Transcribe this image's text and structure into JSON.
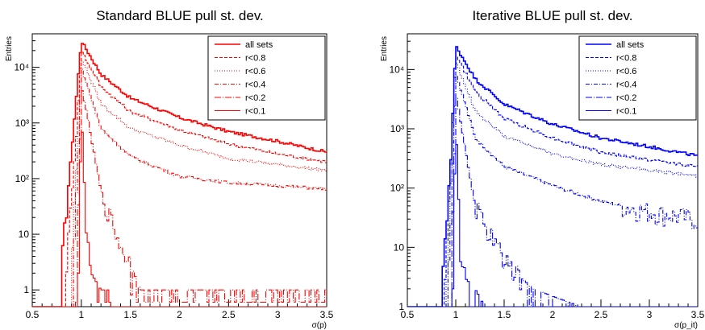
{
  "chart_data": [
    {
      "type": "line",
      "title": "Standard BLUE pull st. dev.",
      "xlabel": "σ(p)",
      "ylabel": "Entries",
      "xlim": [
        0.5,
        3.5
      ],
      "ylim": [
        0.5,
        40000
      ],
      "yscale": "log",
      "x_ticks": [
        "0.5",
        "1",
        "1.5",
        "2",
        "2.5",
        "3",
        "3.5"
      ],
      "y_ticks": [
        "1",
        "10",
        "10²",
        "10³",
        "10⁴"
      ],
      "color": "#ff0000",
      "legend_position": "top-right",
      "series": [
        {
          "name": "all sets",
          "style": "solid",
          "peak": 30000,
          "x": [
            0.8,
            0.9,
            1.0,
            1.2,
            1.5,
            2.0,
            2.5,
            3.0,
            3.5
          ],
          "y": [
            3,
            300,
            30000,
            7500,
            2800,
            1250,
            700,
            470,
            300
          ]
        },
        {
          "name": "r<0.8",
          "style": "dashed",
          "peak": 20000,
          "x": [
            0.85,
            0.95,
            1.0,
            1.2,
            1.5,
            2.0,
            2.5,
            3.0,
            3.5
          ],
          "y": [
            3,
            600,
            20000,
            4500,
            1600,
            750,
            420,
            280,
            200
          ]
        },
        {
          "name": "r<0.6",
          "style": "dotted",
          "peak": 15000,
          "x": [
            0.9,
            0.97,
            1.0,
            1.2,
            1.5,
            2.0,
            2.5,
            3.0,
            3.5
          ],
          "y": [
            3,
            700,
            15000,
            2200,
            800,
            400,
            230,
            180,
            140
          ]
        },
        {
          "name": "r<0.4",
          "style": "dash-dot",
          "peak": 10000,
          "x": [
            0.92,
            0.98,
            1.0,
            1.2,
            1.5,
            2.0,
            2.5,
            3.0,
            3.5
          ],
          "y": [
            3,
            800,
            10000,
            800,
            250,
            110,
            85,
            75,
            65
          ]
        },
        {
          "name": "r<0.2",
          "style": "long-dash-dot",
          "peak": 5000,
          "x": [
            0.95,
            0.99,
            1.0,
            1.2,
            1.4,
            1.5,
            1.6,
            2.0,
            2.5,
            3.0,
            3.5
          ],
          "y": [
            2,
            500,
            5000,
            60,
            6,
            3,
            1,
            1,
            1,
            1,
            1
          ]
        },
        {
          "name": "r<0.1",
          "style": "solid-thin",
          "peak": 2000,
          "x": [
            0.97,
            1.0,
            1.05,
            1.1,
            1.2,
            1.3
          ],
          "y": [
            2,
            2000,
            10,
            2,
            1,
            1
          ]
        }
      ],
      "legend": [
        "all sets",
        "r<0.8",
        "r<0.6",
        "r<0.4",
        "r<0.2",
        "r<0.1"
      ]
    },
    {
      "type": "line",
      "title": "Iterative BLUE pull st. dev.",
      "xlabel": "σ(p_it)",
      "ylabel": "Entries",
      "xlim": [
        0.5,
        3.5
      ],
      "ylim": [
        1,
        40000
      ],
      "yscale": "log",
      "x_ticks": [
        "0.5",
        "1",
        "1.5",
        "2",
        "2.5",
        "3",
        "3.5"
      ],
      "y_ticks": [
        "1",
        "10",
        "10²",
        "10³",
        "10⁴"
      ],
      "color": "#0000ff",
      "legend_position": "top-right",
      "series": [
        {
          "name": "all sets",
          "style": "solid",
          "peak": 25000,
          "x": [
            0.85,
            0.95,
            1.0,
            1.2,
            1.5,
            2.0,
            2.5,
            3.0,
            3.5
          ],
          "y": [
            2,
            300,
            25000,
            7000,
            2600,
            1200,
            700,
            500,
            350
          ]
        },
        {
          "name": "r<0.8",
          "style": "dashed",
          "peak": 18000,
          "x": [
            0.88,
            0.96,
            1.0,
            1.2,
            1.5,
            2.0,
            2.5,
            3.0,
            3.5
          ],
          "y": [
            2,
            500,
            18000,
            4300,
            1500,
            700,
            400,
            300,
            230
          ]
        },
        {
          "name": "r<0.6",
          "style": "dotted",
          "peak": 14000,
          "x": [
            0.9,
            0.97,
            1.0,
            1.2,
            1.5,
            2.0,
            2.5,
            3.0,
            3.5
          ],
          "y": [
            2,
            600,
            14000,
            2000,
            750,
            380,
            250,
            200,
            160
          ]
        },
        {
          "name": "r<0.4",
          "style": "dash-dot",
          "peak": 9000,
          "x": [
            0.92,
            0.98,
            1.0,
            1.2,
            1.5,
            2.0,
            2.5,
            3.0,
            3.5
          ],
          "y": [
            2,
            700,
            9000,
            700,
            230,
            110,
            60,
            40,
            30
          ]
        },
        {
          "name": "r<0.2",
          "style": "long-dash-dot",
          "peak": 4000,
          "x": [
            0.95,
            0.99,
            1.0,
            1.2,
            1.4,
            1.6,
            1.8,
            2.0,
            2.3
          ],
          "y": [
            2,
            400,
            4000,
            50,
            12,
            4,
            2,
            1.5,
            1
          ]
        },
        {
          "name": "r<0.1",
          "style": "solid-thin",
          "peak": 1500,
          "x": [
            0.97,
            1.0,
            1.05,
            1.1,
            1.2,
            1.3
          ],
          "y": [
            2,
            1500,
            8,
            3,
            2,
            1
          ]
        }
      ],
      "legend": [
        "all sets",
        "r<0.8",
        "r<0.6",
        "r<0.4",
        "r<0.2",
        "r<0.1"
      ]
    }
  ]
}
